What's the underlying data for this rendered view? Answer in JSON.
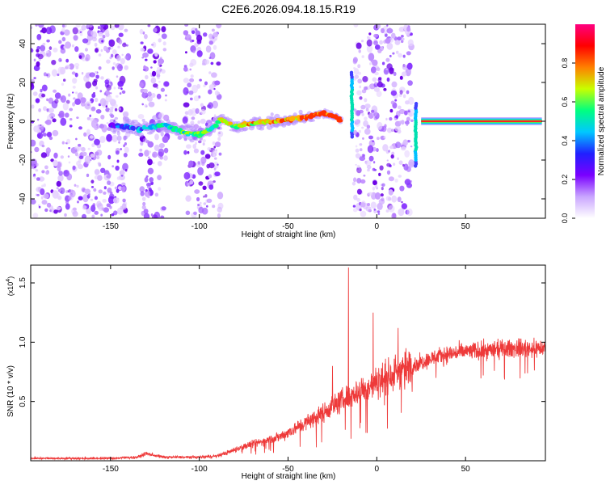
{
  "title": "C2E6.2026.094.18.15.R19",
  "chart_data": [
    {
      "type": "heatmap",
      "xlabel": "Height of straight line (km)",
      "ylabel": "Frequency (Hz)",
      "xlim": [
        -195,
        95
      ],
      "ylim": [
        -50,
        50
      ],
      "xticks": [
        -150,
        -100,
        -50,
        0,
        50
      ],
      "yticks": [
        -40,
        -20,
        0,
        20,
        40
      ],
      "colorbar": {
        "label": "Normalized spectral amplitude",
        "range": [
          0.0,
          1.0
        ],
        "ticks": [
          0.0,
          0.2,
          0.4,
          0.6,
          0.8
        ],
        "tick_labels": [
          "0.0",
          "0.2",
          "0.4",
          "0.6",
          "0.8"
        ],
        "colors": [
          "#ffffff",
          "#c9a6ff",
          "#7a00ff",
          "#2020ff",
          "#00c8ff",
          "#00ff80",
          "#c8ff00",
          "#ff8000",
          "#ff0000",
          "#ff0080"
        ]
      },
      "noise_bands": [
        [
          -195,
          -140
        ],
        [
          -133,
          -118
        ],
        [
          -108,
          -88
        ],
        [
          -13,
          20
        ]
      ],
      "ridge": {
        "x": [
          -150,
          -140,
          -133,
          -120,
          -108,
          -100,
          -92,
          -88,
          -80,
          -70,
          -60,
          -50,
          -40,
          -35,
          -30,
          -25,
          -20
        ],
        "y": [
          -2,
          -3,
          -4,
          -2,
          -6,
          -7,
          -3,
          1,
          -3,
          -1,
          0,
          1,
          2,
          3,
          4,
          3,
          0
        ]
      },
      "spikes": [
        {
          "x": -14,
          "y_range": [
            -8,
            25
          ]
        },
        {
          "x": 22,
          "y_range": [
            -23,
            9
          ]
        }
      ],
      "tone": {
        "x_range": [
          25,
          93
        ],
        "y": 0
      }
    },
    {
      "type": "line",
      "xlabel": "Height of straight line (km)",
      "ylabel": "SNR (10 * v/v)",
      "y_multiplier": "(x10^4)",
      "xlim": [
        -195,
        95
      ],
      "ylim": [
        0,
        1.65
      ],
      "xticks": [
        -150,
        -100,
        -50,
        0,
        50
      ],
      "yticks": [
        0.5,
        1.0,
        1.5
      ],
      "series": [
        {
          "color": "#ee3a3a",
          "envelope": {
            "x": [
              -195,
              -150,
              -135,
              -130,
              -120,
              -100,
              -90,
              -82,
              -75,
              -65,
              -55,
              -45,
              -35,
              -25,
              -15,
              -5,
              0,
              10,
              20,
              30,
              40,
              50,
              60,
              70,
              80,
              90,
              95
            ],
            "y": [
              0.02,
              0.02,
              0.03,
              0.06,
              0.03,
              0.03,
              0.04,
              0.08,
              0.12,
              0.16,
              0.2,
              0.28,
              0.36,
              0.46,
              0.55,
              0.62,
              0.66,
              0.74,
              0.8,
              0.86,
              0.9,
              0.92,
              0.93,
              0.94,
              0.95,
              0.95,
              0.95
            ]
          },
          "peaks": [
            {
              "x": -16,
              "y": 1.63
            },
            {
              "x": -2,
              "y": 1.25
            },
            {
              "x": 12,
              "y": 1.12
            },
            {
              "x": -25,
              "y": 0.8
            }
          ]
        }
      ]
    }
  ]
}
